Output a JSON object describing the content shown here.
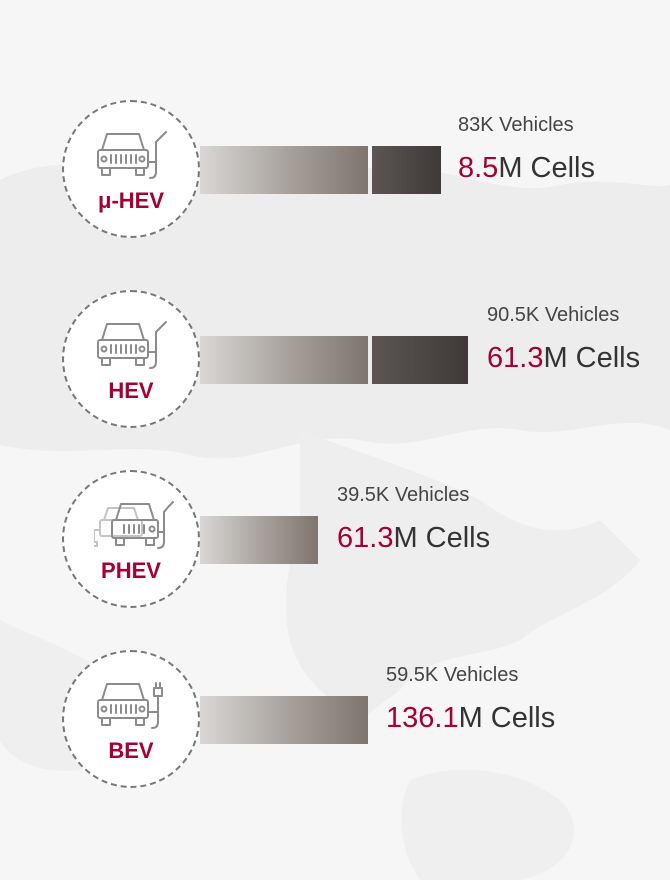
{
  "chart_data": {
    "type": "bar",
    "categories": [
      "μ-HEV",
      "HEV",
      "PHEV",
      "BEV"
    ],
    "series": [
      {
        "values": [
          83,
          90.5,
          39.5,
          59.5
        ]
      },
      {
        "values": [
          8.5,
          61.3,
          61.3,
          136.1
        ]
      }
    ],
    "rows": [
      {
        "label": "μ-HEV",
        "vehicles": "83K Vehicles",
        "cells_num": "8.5",
        "cells_unit": "M Cells",
        "icon": "car-fuel-icon"
      },
      {
        "label": "HEV",
        "vehicles": "90.5K Vehicles",
        "cells_num": "61.3",
        "cells_unit": "M Cells",
        "icon": "car-fuel-icon"
      },
      {
        "label": "PHEV",
        "vehicles": "39.5K Vehicles",
        "cells_num": "61.3",
        "cells_unit": "M Cells",
        "icon": "car-plug-fuel-icon"
      },
      {
        "label": "BEV",
        "vehicles": "59.5K Vehicles",
        "cells_num": "136.1",
        "cells_unit": "M Cells",
        "icon": "car-plug-icon"
      }
    ]
  },
  "colors": {
    "accent": "#a50034",
    "text": "#333333",
    "bar_dark": "#3f3a39",
    "bar_light": "#d9d7d5"
  }
}
